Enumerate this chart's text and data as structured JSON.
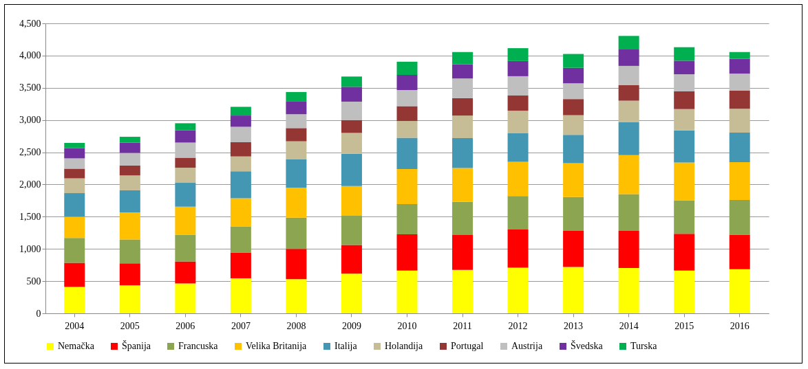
{
  "chart_data": {
    "type": "bar",
    "stacked": true,
    "categories": [
      "2004",
      "2005",
      "2006",
      "2007",
      "2008",
      "2009",
      "2010",
      "2011",
      "2012",
      "2013",
      "2014",
      "2015",
      "2016"
    ],
    "series": [
      {
        "name": "Nemačka",
        "color": "#ffff00",
        "values": [
          410,
          435,
          465,
          545,
          530,
          615,
          665,
          675,
          710,
          720,
          705,
          665,
          685
        ]
      },
      {
        "name": "Španija",
        "color": "#ff0000",
        "values": [
          375,
          340,
          340,
          400,
          470,
          445,
          560,
          540,
          590,
          560,
          575,
          570,
          535
        ]
      },
      {
        "name": "Francuska",
        "color": "#8ca550",
        "values": [
          385,
          370,
          415,
          405,
          485,
          455,
          470,
          515,
          520,
          525,
          570,
          520,
          540
        ]
      },
      {
        "name": "Velika Britanija",
        "color": "#ffc000",
        "values": [
          330,
          420,
          435,
          435,
          465,
          460,
          545,
          525,
          530,
          525,
          605,
          585,
          585
        ]
      },
      {
        "name": "Italija",
        "color": "#4397b3",
        "values": [
          365,
          345,
          370,
          420,
          445,
          500,
          485,
          465,
          450,
          440,
          515,
          500,
          460
        ]
      },
      {
        "name": "Holandija",
        "color": "#c6bc96",
        "values": [
          230,
          230,
          235,
          230,
          275,
          325,
          260,
          350,
          345,
          305,
          330,
          330,
          370
        ]
      },
      {
        "name": "Portugal",
        "color": "#943634",
        "values": [
          150,
          155,
          155,
          220,
          205,
          200,
          230,
          270,
          235,
          250,
          240,
          275,
          280
        ]
      },
      {
        "name": "Austrija",
        "color": "#bfbfbf",
        "values": [
          160,
          195,
          235,
          240,
          215,
          285,
          250,
          305,
          300,
          245,
          300,
          265,
          265
        ]
      },
      {
        "name": "Švedska",
        "color": "#7030a0",
        "values": [
          160,
          160,
          190,
          175,
          195,
          230,
          235,
          220,
          235,
          240,
          255,
          210,
          230
        ]
      },
      {
        "name": "Turska",
        "color": "#00b050",
        "values": [
          80,
          90,
          110,
          135,
          150,
          160,
          205,
          190,
          200,
          215,
          210,
          210,
          105
        ]
      }
    ],
    "ylim": [
      0,
      4500
    ],
    "yticks": [
      0,
      500,
      {
        "value": 1000,
        "label": "1,000"
      },
      {
        "value": 1500,
        "label": "1,500"
      },
      {
        "value": 2000,
        "label": "2,000"
      },
      {
        "value": 2500,
        "label": "2,500"
      },
      {
        "value": 3000,
        "label": "3,000"
      },
      {
        "value": 3500,
        "label": "3,500"
      },
      {
        "value": 4000,
        "label": "4,000"
      },
      {
        "value": 4500,
        "label": "4,500"
      }
    ],
    "grid": "y",
    "legend": "bottom"
  }
}
